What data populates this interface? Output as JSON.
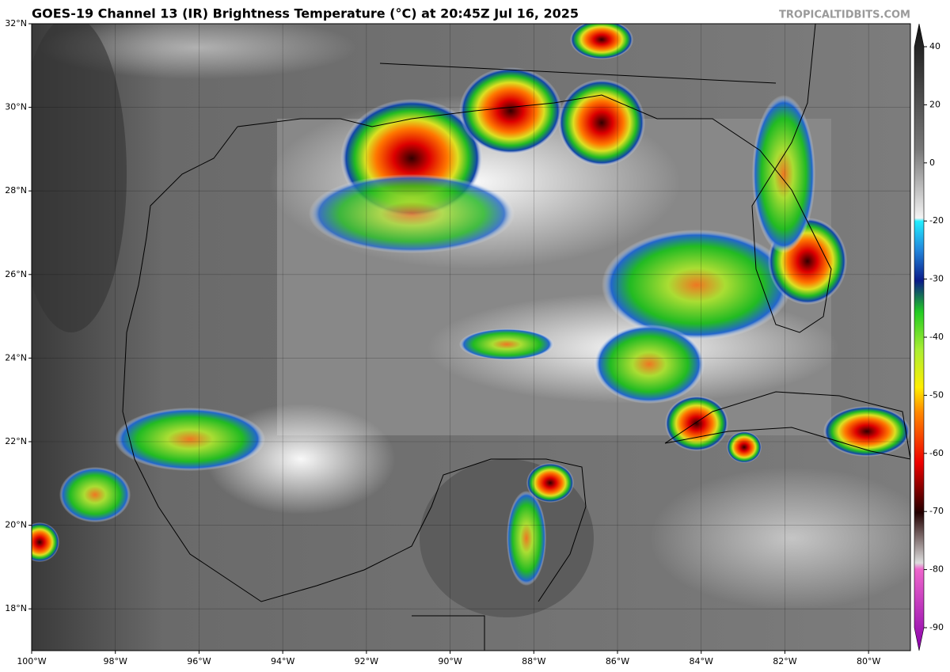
{
  "header": {
    "title": "GOES-19 Channel 13 (IR) Brightness Temperature (°C) at 20:45Z Jul 16, 2025",
    "source": "TROPICALTIDBITS.COM"
  },
  "map": {
    "xlim": [
      -100,
      -79
    ],
    "ylim": [
      17,
      32
    ],
    "xticks": [
      {
        "value": -100,
        "label": "100°W"
      },
      {
        "value": -98,
        "label": "98°W"
      },
      {
        "value": -96,
        "label": "96°W"
      },
      {
        "value": -94,
        "label": "94°W"
      },
      {
        "value": -92,
        "label": "92°W"
      },
      {
        "value": -90,
        "label": "90°W"
      },
      {
        "value": -88,
        "label": "88°W"
      },
      {
        "value": -86,
        "label": "86°W"
      },
      {
        "value": -84,
        "label": "84°W"
      },
      {
        "value": -82,
        "label": "82°W"
      },
      {
        "value": -80,
        "label": "80°W"
      }
    ],
    "yticks": [
      {
        "value": 32,
        "label": "32°N"
      },
      {
        "value": 30,
        "label": "30°N"
      },
      {
        "value": 28,
        "label": "28°N"
      },
      {
        "value": 26,
        "label": "26°N"
      },
      {
        "value": 24,
        "label": "24°N"
      },
      {
        "value": 22,
        "label": "22°N"
      },
      {
        "value": 20,
        "label": "20°N"
      },
      {
        "value": 18,
        "label": "18°N"
      }
    ]
  },
  "colorbar": {
    "ticks": [
      40,
      20,
      0,
      -20,
      -30,
      -40,
      -50,
      -60,
      -70,
      -80,
      -90
    ]
  }
}
